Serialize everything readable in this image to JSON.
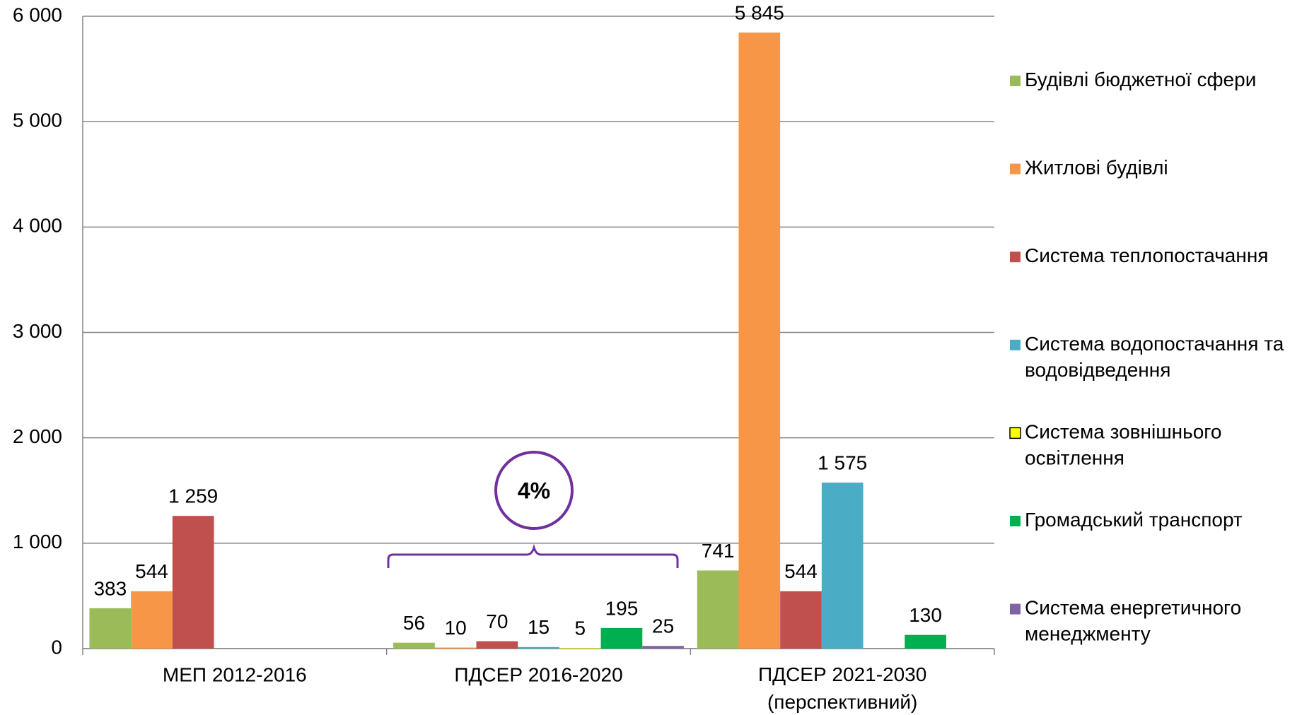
{
  "chart_data": {
    "type": "bar",
    "categories": [
      "МЕП 2012-2016",
      "ПДСЕР 2016-2020",
      "ПДСЕР 2021-2030\n(перспективний)"
    ],
    "series": [
      {
        "name": "Будівлі бюджетної сфери",
        "color": "#9bbb59",
        "values": [
          383,
          56,
          741
        ]
      },
      {
        "name": "Житлові будівлі",
        "color": "#f79646",
        "values": [
          544,
          10,
          5845
        ],
        "value_labels": [
          "544",
          "10",
          "5 845"
        ]
      },
      {
        "name": "Система теплопостачання",
        "color": "#c0504d",
        "values": [
          1259,
          70,
          544
        ],
        "value_labels": [
          "1 259",
          "70",
          "544"
        ]
      },
      {
        "name": "Система водопостачання та водовідведення",
        "color": "#4bacc6",
        "values": [
          null,
          15,
          1575
        ],
        "value_labels": [
          null,
          "15",
          "1 575"
        ]
      },
      {
        "name": "Система зовнішнього освітлення",
        "color": "#ffff00",
        "values": [
          null,
          5,
          null
        ]
      },
      {
        "name": "Громадський транспорт",
        "color": "#00b050",
        "values": [
          null,
          195,
          130
        ]
      },
      {
        "name": "Система енергетичного менеджменту",
        "color": "#8064a2",
        "values": [
          null,
          25,
          null
        ]
      }
    ],
    "ylim": [
      0,
      6000
    ],
    "yticks": [
      0,
      {
        "value": 1000,
        "label": "1 000"
      },
      {
        "value": 2000,
        "label": "2 000"
      },
      {
        "value": 3000,
        "label": "3 000"
      },
      {
        "value": 4000,
        "label": "4 000"
      },
      {
        "value": 5000,
        "label": "5 000"
      },
      {
        "value": 6000,
        "label": "6 000"
      }
    ],
    "grid": true,
    "legend": "right",
    "annotation": "4%"
  }
}
